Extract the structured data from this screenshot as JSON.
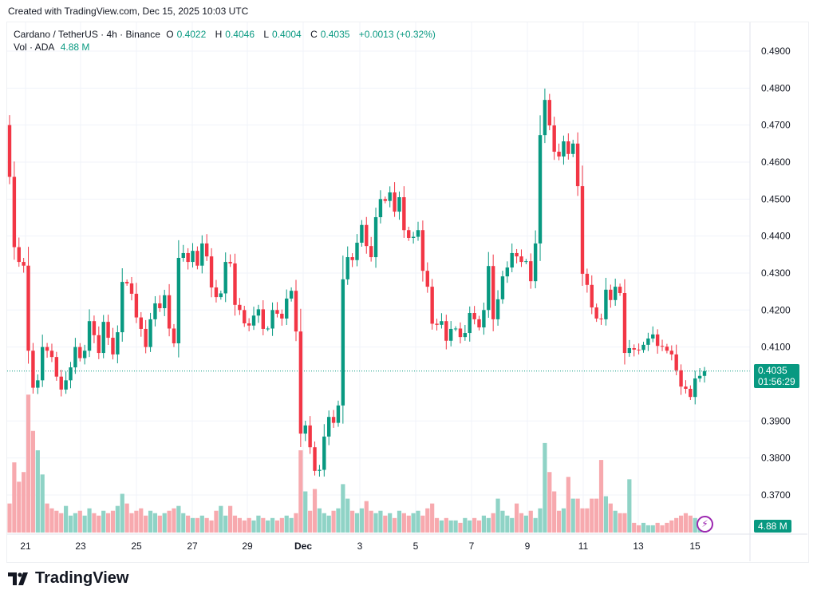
{
  "watermark_text": "Created with TradingView.com, Dec 15, 2025 10:03 UTC",
  "legend": {
    "symbol": "Cardano / TetherUS · 4h · Binance",
    "o_label": "O",
    "o": "0.4022",
    "h_label": "H",
    "h": "0.4046",
    "l_label": "L",
    "l": "0.4004",
    "c_label": "C",
    "c": "0.4035",
    "change": "+0.0013 (+0.32%)",
    "vol_label": "Vol · ADA",
    "vol": "4.88 M"
  },
  "price_tag": {
    "price": "0.4035",
    "countdown": "01:56:29"
  },
  "volume_tag": "4.88 M",
  "logo_text": "TradingView",
  "colors": {
    "up": "#089981",
    "down": "#F23645",
    "up_volume": "#8fd3c6",
    "down_volume": "#f7a9ae",
    "indicator": "#9c27b0"
  },
  "chart_data": {
    "type": "candlestick",
    "interval": "4h",
    "ylim": [
      0.365,
      0.495
    ],
    "y_ticks": [
      "0.4900",
      "0.4800",
      "0.4700",
      "0.4600",
      "0.4500",
      "0.4400",
      "0.4300",
      "0.4200",
      "0.4100",
      "0.3900",
      "0.3800",
      "0.3700"
    ],
    "x_ticks": [
      "21",
      "23",
      "25",
      "27",
      "29",
      "Dec",
      "3",
      "5",
      "7",
      "9",
      "11",
      "13",
      "15"
    ],
    "first_open": 0.47,
    "last_candle": {
      "open": 0.4022,
      "high": 0.4046,
      "low": 0.4004,
      "close": 0.4035
    },
    "close": [
      0.456,
      0.437,
      0.433,
      0.432,
      0.409,
      0.399,
      0.401,
      0.41,
      0.409,
      0.4073,
      0.402,
      0.3985,
      0.401,
      0.4045,
      0.41,
      0.407,
      0.409,
      0.417,
      0.4132,
      0.4084,
      0.4168,
      0.4125,
      0.408,
      0.414,
      0.4276,
      0.4272,
      0.4244,
      0.418,
      0.4149,
      0.41,
      0.4175,
      0.4218,
      0.4205,
      0.424,
      0.415,
      0.411,
      0.4341,
      0.4354,
      0.433,
      0.436,
      0.432,
      0.438,
      0.4345,
      0.4261,
      0.4235,
      0.4245,
      0.433,
      0.4326,
      0.4214,
      0.42,
      0.4164,
      0.4158,
      0.4185,
      0.4202,
      0.4149,
      0.415,
      0.42,
      0.419,
      0.4177,
      0.4231,
      0.4252,
      0.4142,
      0.3866,
      0.3888,
      0.3829,
      0.3765,
      0.3768,
      0.3858,
      0.3911,
      0.3895,
      0.3942,
      0.4283,
      0.4343,
      0.4335,
      0.4382,
      0.443,
      0.4373,
      0.4343,
      0.4451,
      0.45,
      0.4495,
      0.4518,
      0.4466,
      0.4505,
      0.4416,
      0.4395,
      0.4398,
      0.4416,
      0.4306,
      0.4263,
      0.4163,
      0.416,
      0.417,
      0.4117,
      0.4149,
      0.415,
      0.4127,
      0.4138,
      0.4192,
      0.4175,
      0.4153,
      0.42,
      0.4319,
      0.4175,
      0.4229,
      0.4291,
      0.4315,
      0.4354,
      0.4345,
      0.433,
      0.4332,
      0.4278,
      0.438,
      0.4673,
      0.4768,
      0.4699,
      0.4628,
      0.4615,
      0.4656,
      0.4622,
      0.465,
      0.4535,
      0.4298,
      0.4268,
      0.4207,
      0.4177,
      0.4175,
      0.4255,
      0.4227,
      0.4263,
      0.4246,
      0.4084,
      0.4097,
      0.4093,
      0.4092,
      0.4106,
      0.4123,
      0.4134,
      0.4103,
      0.4101,
      0.409,
      0.408,
      0.4037,
      0.3993,
      0.3987,
      0.3965,
      0.4015,
      0.4022,
      0.4035
    ],
    "volume_millions": [
      12,
      29,
      21,
      25,
      57,
      42,
      34,
      24,
      12,
      10,
      9,
      8,
      11,
      7,
      8,
      9,
      7,
      10,
      8,
      7,
      9,
      8,
      9,
      11,
      16,
      12,
      8,
      9,
      10,
      7,
      9,
      8,
      7,
      8,
      9,
      10,
      11,
      8,
      7,
      6,
      6,
      7,
      6,
      5,
      9,
      11,
      7,
      11,
      7,
      6,
      5,
      6,
      5,
      7,
      6,
      5,
      6,
      5,
      6,
      7,
      6,
      8,
      34,
      17,
      9,
      18,
      10,
      8,
      7,
      9,
      10,
      20,
      14,
      9,
      8,
      10,
      13,
      9,
      8,
      9,
      7,
      8,
      6,
      9,
      8,
      7,
      8,
      9,
      7,
      10,
      12,
      6,
      5,
      6,
      5,
      5,
      4,
      6,
      5,
      6,
      5,
      7,
      6,
      8,
      14,
      9,
      7,
      6,
      12,
      8,
      7,
      9,
      6,
      10,
      37,
      25,
      17,
      9,
      10,
      23,
      14,
      14,
      10,
      10,
      14,
      14,
      30,
      15,
      12,
      9,
      8,
      8,
      22,
      4,
      3,
      4,
      3,
      3,
      4,
      3,
      4,
      5,
      6,
      7,
      8,
      7,
      6,
      5,
      4.88
    ]
  }
}
